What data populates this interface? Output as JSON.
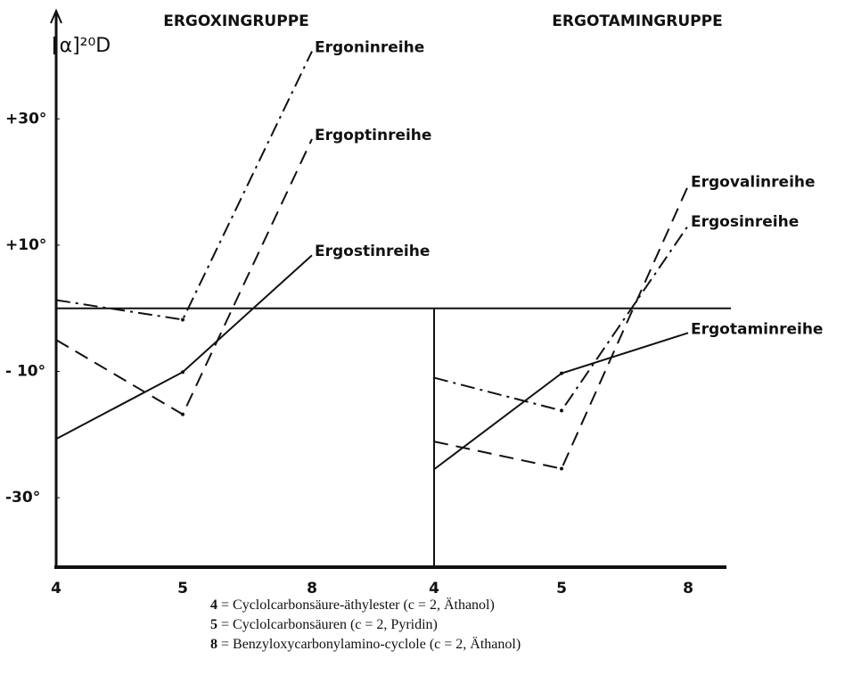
{
  "chart_data": [
    {
      "type": "line",
      "title": "ERGOXINGRUPPE",
      "ylabel": "[α]²⁰D",
      "categories": [
        "4",
        "5",
        "8"
      ],
      "ylim": [
        -41,
        46
      ],
      "yticks": [
        {
          "value": 30,
          "label": "+30°"
        },
        {
          "value": 10,
          "label": "+10°"
        },
        {
          "value": -10,
          "label": "- 10°"
        },
        {
          "value": -30,
          "label": "-30°"
        }
      ],
      "series": [
        {
          "name": "Ergoninreihe",
          "color": "#111111",
          "dash": "dashdot",
          "values": [
            1.3,
            -1.8,
            40.7
          ]
        },
        {
          "name": "Ergoptinreihe",
          "color": "#111111",
          "dash": "dashed",
          "values": [
            -5.0,
            -16.8,
            26.8
          ]
        },
        {
          "name": "Ergostinreihe",
          "color": "#111111",
          "dash": "solid",
          "values": [
            -20.7,
            -10.1,
            8.4
          ]
        }
      ]
    },
    {
      "type": "line",
      "title": "ERGOTAMINGRUPPE",
      "categories": [
        "4",
        "5",
        "8"
      ],
      "ylim": [
        -41,
        46
      ],
      "series": [
        {
          "name": "Ergovalinreihe",
          "color": "#111111",
          "dash": "dashed",
          "values": [
            -21.1,
            -25.4,
            19.4
          ]
        },
        {
          "name": "Ergosinreihe",
          "color": "#111111",
          "dash": "dashdot",
          "values": [
            -11.0,
            -16.2,
            13.1
          ]
        },
        {
          "name": "Ergotaminreihe",
          "color": "#111111",
          "dash": "solid",
          "values": [
            -25.5,
            -10.3,
            -3.9
          ]
        }
      ]
    }
  ],
  "notes": [
    {
      "key": "4",
      "text": "= Cyclolcarbonsäure-äthylester (c = 2, Äthanol)"
    },
    {
      "key": "5",
      "text": "= Cyclolcarbonsäuren (c = 2, Pyridin)"
    },
    {
      "key": "8",
      "text": "= Benzyloxycarbonylamino-cyclole (c = 2, Äthanol)"
    }
  ]
}
